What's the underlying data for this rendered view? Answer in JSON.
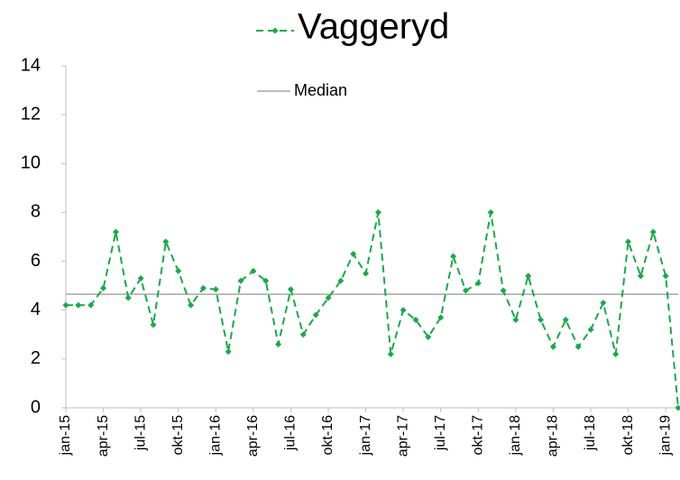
{
  "chart_data": {
    "type": "line",
    "categories": [
      "jan-15",
      null,
      null,
      "apr-15",
      null,
      null,
      "jul-15",
      null,
      null,
      "okt-15",
      null,
      null,
      "jan-16",
      null,
      null,
      "apr-16",
      null,
      null,
      "jul-16",
      null,
      null,
      "okt-16",
      null,
      null,
      "jan-17",
      null,
      null,
      "apr-17",
      null,
      null,
      "jul-17",
      null,
      null,
      "okt-17",
      null,
      null,
      "jan-18",
      null,
      null,
      "apr-18",
      null,
      null,
      "jul-18",
      null,
      null,
      "okt-18",
      null,
      null,
      "jan-19",
      null
    ],
    "series": [
      {
        "name": "Vaggeryd",
        "color": "#1aa84a",
        "values": [
          4.2,
          4.2,
          4.2,
          4.9,
          7.2,
          4.5,
          5.3,
          3.4,
          6.8,
          5.6,
          4.2,
          4.9,
          4.85,
          2.3,
          5.2,
          5.6,
          5.2,
          2.6,
          4.85,
          3.0,
          3.8,
          4.5,
          5.2,
          6.3,
          5.5,
          8.0,
          2.2,
          4.0,
          3.6,
          2.9,
          3.7,
          6.2,
          4.8,
          5.1,
          8.0,
          4.8,
          3.6,
          5.4,
          3.6,
          2.5,
          3.6,
          2.5,
          3.2,
          4.3,
          2.2,
          6.8,
          5.4,
          7.2,
          5.4,
          0
        ]
      }
    ],
    "reference_lines": [
      {
        "name": "Median",
        "value": 4.65,
        "color": "#a6a6a6"
      }
    ],
    "ylim": [
      0,
      14
    ],
    "yticks": [
      0,
      2,
      4,
      6,
      8,
      10,
      12,
      14
    ],
    "grid": false
  }
}
